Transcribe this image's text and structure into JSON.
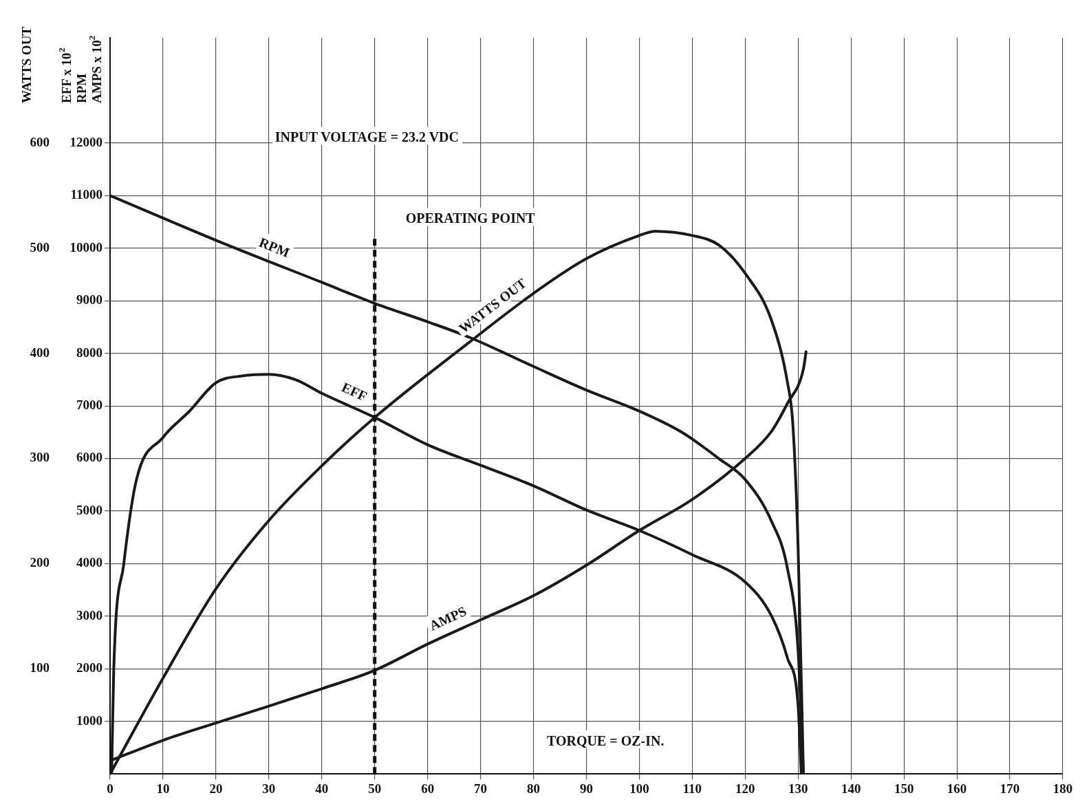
{
  "chart_data": {
    "type": "line",
    "xlabel": "TORQUE = OZ-IN.",
    "ylabel": "EFF x 10$^{2}$\nRPM\nAMPS x 10$^{2}$",
    "y2label": "WATTS OUT",
    "annotations": [
      "INPUT VOLTAGE = 23.2 VDC"
    ],
    "xlim": [
      0,
      180
    ],
    "xticks": [
      0,
      10,
      20,
      30,
      40,
      50,
      60,
      70,
      80,
      90,
      100,
      110,
      120,
      130,
      140,
      150,
      160,
      170,
      180
    ],
    "ylim": [
      0,
      14000
    ],
    "yticks": [
      1000,
      2000,
      3000,
      4000,
      5000,
      6000,
      7000,
      8000,
      9000,
      10000,
      11000,
      12000
    ],
    "y2lim": [
      0,
      700
    ],
    "y2ticks": [
      100,
      200,
      300,
      400,
      500,
      600
    ],
    "grid": true,
    "legend": false,
    "marker": "none",
    "line_style": "solid",
    "ref_lines": [
      {
        "axis": "x",
        "value": 50,
        "label": "OPERATING POINT",
        "line_style": "dashed",
        "color": "#111111"
      }
    ],
    "series": [
      {
        "name": "RPM",
        "color": "#1a1a1a",
        "x": [
          0,
          20,
          40,
          50,
          60,
          68,
          80,
          90,
          100,
          108,
          115,
          120,
          125,
          128,
          130,
          131
        ],
        "values": [
          11000,
          10150,
          9350,
          8950,
          8600,
          8300,
          7750,
          7300,
          6900,
          6500,
          6000,
          5600,
          4800,
          3900,
          2350,
          0
        ]
      },
      {
        "name": "EFF",
        "color": "#1a1a1a",
        "x": [
          0.3,
          0.7,
          2.6,
          5,
          10,
          15,
          20,
          25,
          30,
          35,
          40,
          50,
          60,
          70,
          80,
          90,
          100,
          110,
          120,
          125,
          128,
          130,
          130.6
        ],
        "values": [
          0,
          2000,
          4000,
          5600,
          6400,
          6900,
          7440,
          7570,
          7600,
          7500,
          7240,
          6780,
          6260,
          5870,
          5480,
          5020,
          4630,
          4170,
          3650,
          3000,
          2200,
          1300,
          0
        ]
      },
      {
        "name": "WATTS OUT",
        "color": "#1a1a1a",
        "axis": "y2",
        "x": [
          0,
          10,
          20,
          30,
          40,
          50,
          68,
          80,
          90,
          100,
          103,
          110,
          115,
          120,
          125,
          128,
          129,
          130,
          131
        ],
        "values": [
          0,
          91,
          176,
          241,
          293,
          339,
          411,
          457,
          490,
          512,
          516,
          512,
          503,
          476,
          431,
          372,
          333,
          215,
          0
        ]
      },
      {
        "name": "AMPS",
        "color": "#1a1a1a",
        "x": [
          0,
          10,
          20,
          30,
          40,
          50,
          60,
          70,
          80,
          90,
          100,
          110,
          120,
          125,
          128,
          131,
          131.5
        ],
        "values": [
          250,
          640,
          970,
          1290,
          1620,
          1970,
          2470,
          2930,
          3390,
          3970,
          4630,
          5220,
          6000,
          6520,
          7050,
          7700,
          8030
        ]
      }
    ]
  }
}
